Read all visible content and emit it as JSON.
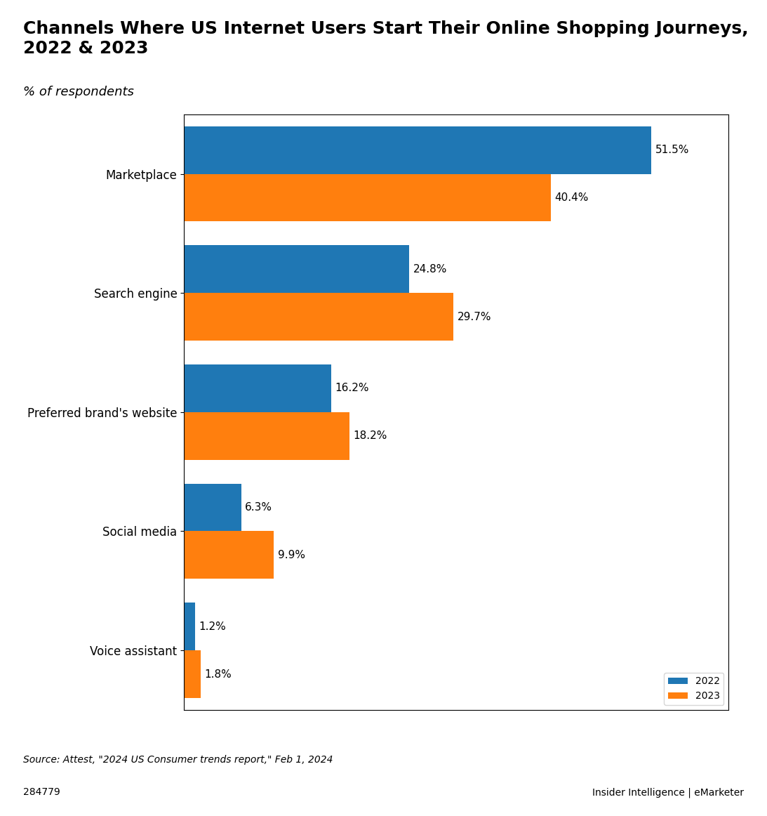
{
  "chart_data": {
    "type": "bar",
    "orientation": "horizontal",
    "title": "Channels Where US Internet Users Start Their Online Shopping Journeys, 2022 & 2023",
    "subtitle": "% of respondents",
    "categories": [
      "Marketplace",
      "Search engine",
      "Preferred brand's website",
      "Social media",
      "Voice assistant"
    ],
    "series": [
      {
        "name": "2022",
        "values": [
          51.5,
          24.8,
          16.2,
          6.3,
          1.2
        ],
        "value_labels": [
          "51.5%",
          "24.8%",
          "16.2%",
          "6.3%",
          "1.2%"
        ]
      },
      {
        "name": "2023",
        "values": [
          40.4,
          29.7,
          18.2,
          9.9,
          1.8
        ],
        "value_labels": [
          "40.4%",
          "29.7%",
          "18.2%",
          "9.9%",
          "1.8%"
        ]
      }
    ],
    "xlim": [
      0,
      60
    ],
    "data_labels": true,
    "tick_labels": "y",
    "legend": "lower right",
    "annotations": [
      "Source: Attest, \"2024 US Consumer trends report,\" Feb 1, 2024",
      "284779",
      "Insider Intelligence | eMarketer"
    ]
  }
}
